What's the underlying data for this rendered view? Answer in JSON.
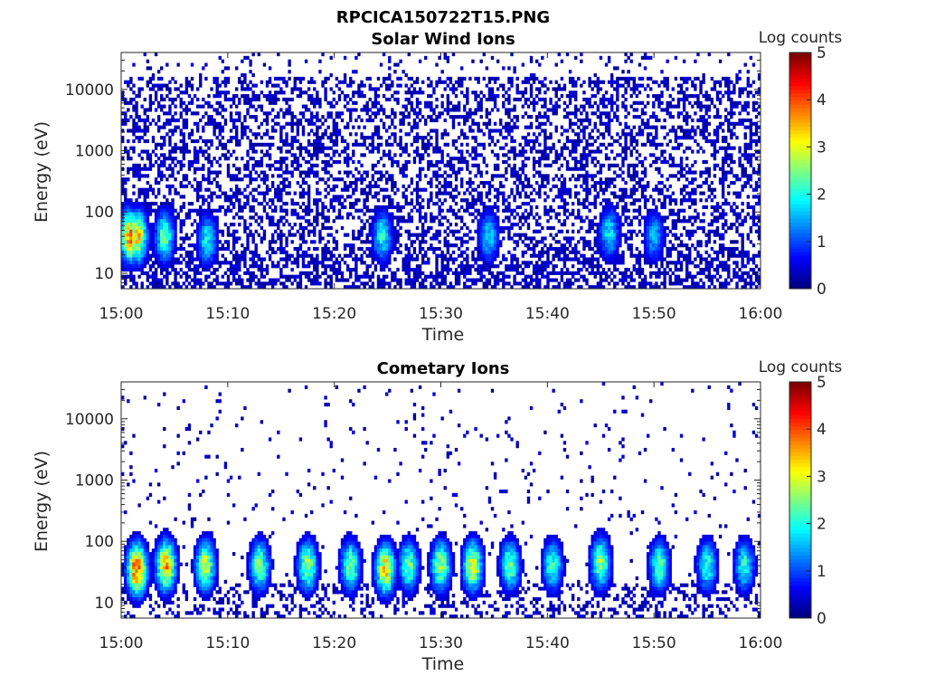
{
  "figure": {
    "title": "RPCICA150722T15.PNG"
  },
  "chart_data": [
    {
      "type": "heatmap",
      "title": "Solar Wind Ions",
      "xlabel": "Time",
      "ylabel": "Energy (eV)",
      "x_range": [
        "15:00",
        "16:00"
      ],
      "x_ticks": [
        "15:00",
        "15:10",
        "15:20",
        "15:30",
        "15:40",
        "15:50",
        "16:00"
      ],
      "y_scale": "log",
      "y_range": [
        5.6,
        40000
      ],
      "y_ticks": [
        10,
        100,
        1000,
        10000
      ],
      "y_tick_labels": [
        "10",
        "100",
        "1000",
        "10000"
      ],
      "colorbar": {
        "label": "Log counts",
        "range": [
          0,
          5
        ],
        "ticks": [
          "0",
          "1",
          "2",
          "3",
          "4",
          "5"
        ],
        "colormap": "jet"
      },
      "pattern": {
        "background_level": 0.3,
        "bursts": [
          {
            "time_min": 0.8,
            "energy_eV": 40,
            "level": 3.8
          },
          {
            "time_min": 1.5,
            "energy_eV": 40,
            "level": 3.5
          },
          {
            "time_min": 4.1,
            "energy_eV": 40,
            "level": 2.4
          },
          {
            "time_min": 8.1,
            "energy_eV": 35,
            "level": 2.0
          },
          {
            "time_min": 24.5,
            "energy_eV": 40,
            "level": 2.0
          },
          {
            "time_min": 34.5,
            "energy_eV": 40,
            "level": 1.8
          },
          {
            "time_min": 45.8,
            "energy_eV": 45,
            "level": 1.9
          },
          {
            "time_min": 50.0,
            "energy_eV": 40,
            "level": 1.6
          }
        ]
      }
    },
    {
      "type": "heatmap",
      "title": "Cometary Ions",
      "xlabel": "Time",
      "ylabel": "Energy (eV)",
      "x_range": [
        "15:00",
        "16:00"
      ],
      "x_ticks": [
        "15:00",
        "15:10",
        "15:20",
        "15:30",
        "15:40",
        "15:50",
        "16:00"
      ],
      "y_scale": "log",
      "y_range": [
        5.6,
        40000
      ],
      "y_ticks": [
        10,
        100,
        1000,
        10000
      ],
      "y_tick_labels": [
        "10",
        "100",
        "1000",
        "10000"
      ],
      "colorbar": {
        "label": "Log counts",
        "range": [
          0,
          5
        ],
        "ticks": [
          "0",
          "1",
          "2",
          "3",
          "4",
          "5"
        ],
        "colormap": "jet"
      },
      "pattern": {
        "background_level": 0.3,
        "bursts": [
          {
            "time_min": 1.5,
            "energy_eV": 35,
            "level": 4.3
          },
          {
            "time_min": 4.2,
            "energy_eV": 40,
            "level": 3.7
          },
          {
            "time_min": 7.9,
            "energy_eV": 40,
            "level": 3.0
          },
          {
            "time_min": 13.0,
            "energy_eV": 40,
            "level": 2.6
          },
          {
            "time_min": 17.5,
            "energy_eV": 40,
            "level": 2.8
          },
          {
            "time_min": 21.5,
            "energy_eV": 40,
            "level": 2.6
          },
          {
            "time_min": 24.8,
            "energy_eV": 35,
            "level": 3.5
          },
          {
            "time_min": 27.0,
            "energy_eV": 40,
            "level": 2.5
          },
          {
            "time_min": 30.0,
            "energy_eV": 40,
            "level": 2.8
          },
          {
            "time_min": 33.0,
            "energy_eV": 40,
            "level": 3.2
          },
          {
            "time_min": 36.5,
            "energy_eV": 40,
            "level": 2.5
          },
          {
            "time_min": 40.5,
            "energy_eV": 40,
            "level": 2.3
          },
          {
            "time_min": 45.0,
            "energy_eV": 45,
            "level": 2.8
          },
          {
            "time_min": 50.5,
            "energy_eV": 40,
            "level": 2.4
          },
          {
            "time_min": 55.0,
            "energy_eV": 40,
            "level": 2.2
          },
          {
            "time_min": 58.5,
            "energy_eV": 40,
            "level": 2.2
          }
        ]
      }
    }
  ]
}
